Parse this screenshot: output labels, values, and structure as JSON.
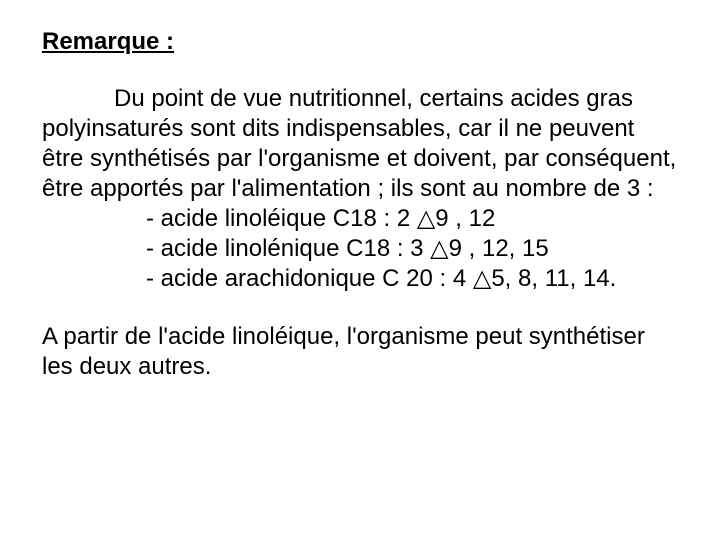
{
  "doc": {
    "background_color": "#ffffff",
    "text_color": "#000000",
    "font_family": "Comic Sans MS",
    "heading_fontsize": 24,
    "body_fontsize": 24,
    "heading": "Remarque :",
    "paragraph1": "Du point de vue nutritionnel, certains acides gras polyinsaturés sont dits indispensables, car il ne peuvent être synthétisés par l'organisme et doivent, par conséquent, être apportés par l'alimentation ; ils sont au nombre de 3 :",
    "items": [
      "- acide linoléique C18 : 2 △9 , 12",
      "- acide linolénique  C18 : 3 △9 , 12, 15",
      "- acide arachidonique C 20 : 4 △5, 8, 11, 14."
    ],
    "paragraph2": "A partir de l'acide linoléique, l'organisme peut synthétiser les deux autres."
  }
}
